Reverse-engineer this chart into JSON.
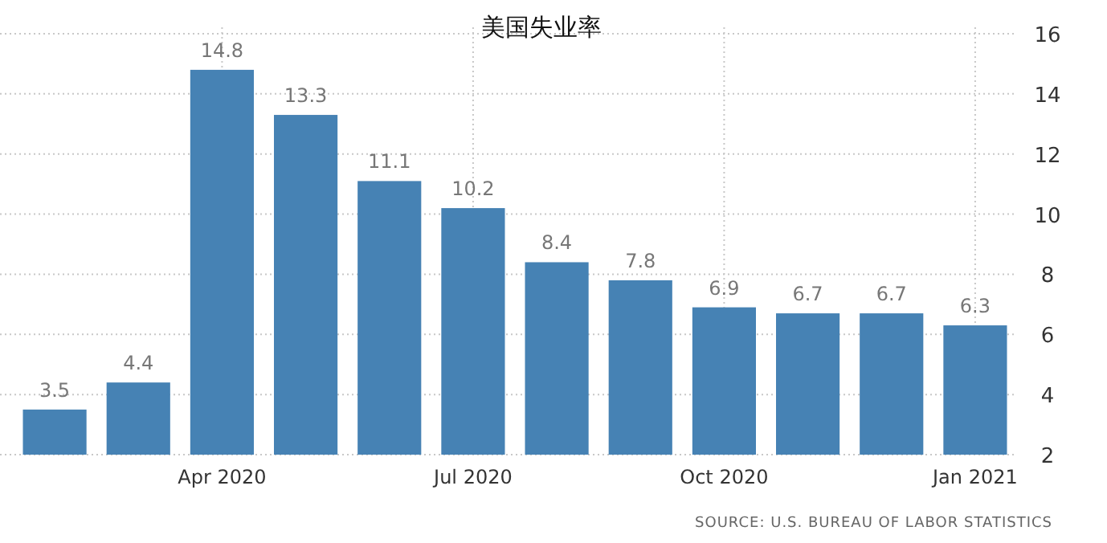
{
  "chart_data": {
    "type": "bar",
    "title": "美国失业率",
    "categories": [
      null,
      null,
      "Apr 2020",
      null,
      null,
      "Jul 2020",
      null,
      null,
      "Oct 2020",
      null,
      null,
      "Jan 2021"
    ],
    "values": [
      3.5,
      4.4,
      14.8,
      13.3,
      11.1,
      10.2,
      8.4,
      7.8,
      6.9,
      6.7,
      6.7,
      6.3
    ],
    "color": "#4682b4",
    "data_labels": true,
    "grid": true,
    "ylim": [
      2,
      16
    ],
    "yticks": [
      2,
      4,
      6,
      8,
      10,
      12,
      14,
      16
    ],
    "annotations": [
      "SOURCE: U.S. BUREAU OF LABOR STATISTICS"
    ]
  }
}
